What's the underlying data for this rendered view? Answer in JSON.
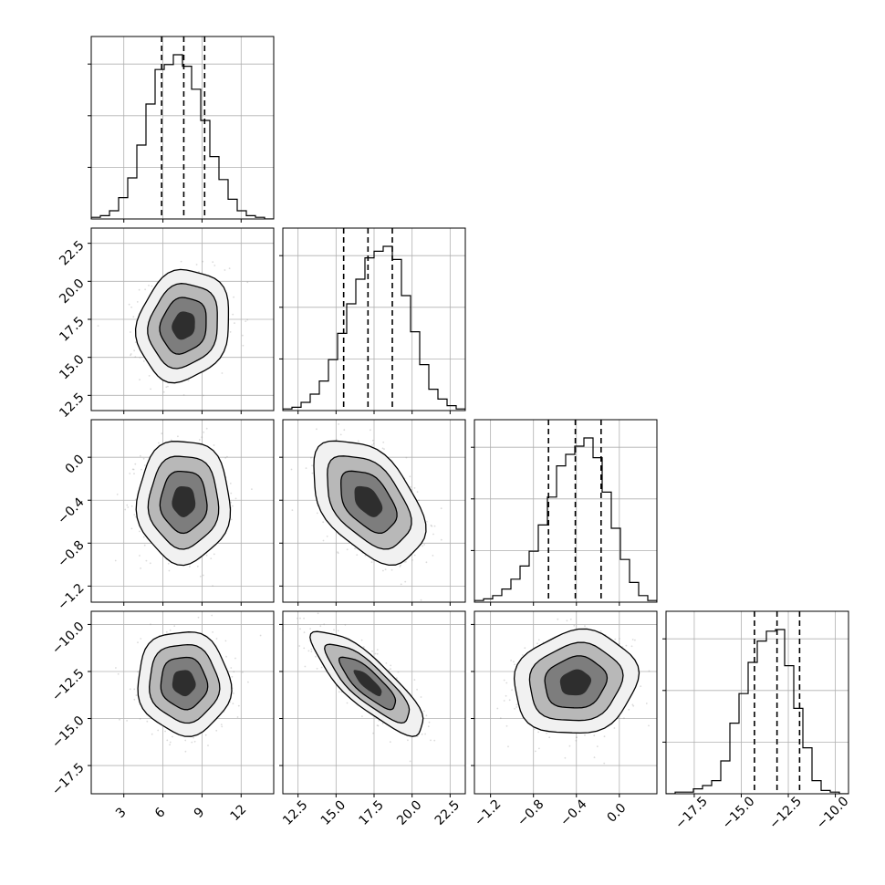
{
  "chart_data": {
    "type": "corner",
    "parameters": 4,
    "axis_labels": [
      "",
      "",
      "",
      ""
    ],
    "grid": true,
    "ticks": {
      "x": [
        [
          "3",
          "6",
          "9",
          "12"
        ],
        [
          "12.5",
          "15.0",
          "17.5",
          "20.0",
          "22.5"
        ],
        [
          "−1.2",
          "−0.8",
          "−0.4",
          "0.0"
        ],
        [
          "−17.5",
          "−15.0",
          "−12.5",
          "−10.0"
        ]
      ],
      "y": [
        [],
        [
          "12.5",
          "15.0",
          "17.5",
          "20.0",
          "22.5"
        ],
        [
          "−1.2",
          "−0.8",
          "−0.4",
          "0.0"
        ],
        [
          "−17.5",
          "−15.0",
          "−12.5",
          "−10.0"
        ]
      ]
    },
    "ranges": [
      [
        0.5,
        14.5
      ],
      [
        11.5,
        23.5
      ],
      [
        -1.35,
        0.35
      ],
      [
        -19.0,
        -9.3
      ]
    ],
    "quantiles": [
      [
        5.9,
        7.6,
        9.2
      ],
      [
        15.5,
        17.1,
        18.7
      ],
      [
        -0.66,
        -0.41,
        -0.17
      ],
      [
        -14.3,
        -13.1,
        -11.9
      ]
    ],
    "histograms": [
      [
        0.01,
        0.02,
        0.05,
        0.13,
        0.25,
        0.45,
        0.7,
        0.91,
        0.94,
        1.0,
        0.93,
        0.79,
        0.6,
        0.38,
        0.24,
        0.12,
        0.05,
        0.02,
        0.01,
        0.0
      ],
      [
        0.01,
        0.02,
        0.05,
        0.1,
        0.18,
        0.31,
        0.47,
        0.65,
        0.8,
        0.93,
        0.97,
        1.0,
        0.92,
        0.7,
        0.48,
        0.28,
        0.13,
        0.07,
        0.03,
        0.01
      ],
      [
        0.01,
        0.02,
        0.04,
        0.08,
        0.14,
        0.22,
        0.31,
        0.47,
        0.64,
        0.83,
        0.9,
        0.95,
        1.0,
        0.88,
        0.67,
        0.45,
        0.26,
        0.12,
        0.04,
        0.01
      ],
      [
        0.0,
        0.01,
        0.01,
        0.03,
        0.05,
        0.08,
        0.2,
        0.43,
        0.61,
        0.8,
        0.93,
        0.99,
        1.0,
        0.78,
        0.52,
        0.28,
        0.08,
        0.02,
        0.01,
        0.0
      ]
    ],
    "means": [
      7.6,
      17.1,
      -0.41,
      -13.1
    ],
    "std": [
      1.55,
      1.6,
      0.25,
      1.2
    ],
    "correlations": [
      [
        1.0,
        0.12,
        0.0,
        -0.05
      ],
      [
        0.12,
        1.0,
        -0.45,
        -0.82
      ],
      [
        0.0,
        -0.45,
        1.0,
        0.1
      ],
      [
        -0.05,
        -0.82,
        0.1,
        1.0
      ]
    ],
    "contour_levels_sigma": [
      0.5,
      1.0,
      1.5,
      2.0
    ],
    "colors": {
      "line": "#000000",
      "points": "#999999",
      "grid": "#b0b0b0"
    }
  }
}
